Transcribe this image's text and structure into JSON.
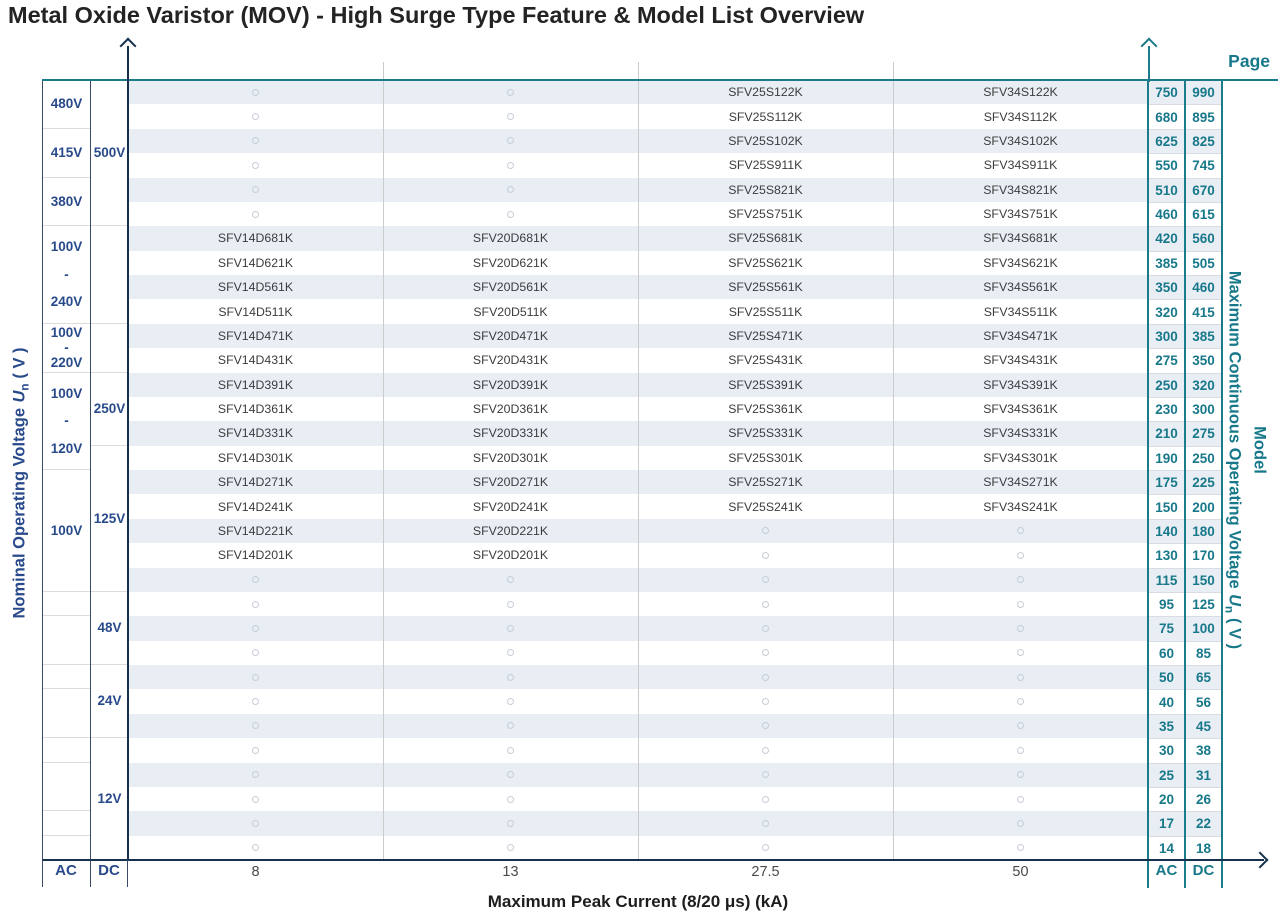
{
  "title": "Metal Oxide Varistor (MOV) - High Surge Type Feature & Model List Overview",
  "page_label": "Page",
  "model_label": "Model",
  "left_axis": {
    "text": "Nominal Operating Voltage",
    "sym": "U",
    "sub": "n",
    "unit": "( V )"
  },
  "right_axis": {
    "text": "Maximum Continuous Operating Voltage",
    "sym": "U",
    "sub": "n",
    "unit": "( V )"
  },
  "x_axis": {
    "label": "Maximum Peak Current (8/20 μs) (kA)"
  },
  "footer": {
    "left_ac": "AC",
    "left_dc": "DC",
    "right_ac": "AC",
    "right_dc": "DC"
  },
  "colors": {
    "teal": "#17788a",
    "navy": "#284a8a",
    "axis": "#15314d",
    "stripe": "#e9eef5"
  },
  "chart_data": {
    "type": "table",
    "title": "Metal Oxide Varistor (MOV) - High Surge Type Feature & Model List Overview",
    "xlabel": "Maximum Peak Current (8/20 μs) (kA)",
    "columns_kA": [
      "8",
      "13",
      "27.5",
      "50"
    ],
    "left_columns": [
      "AC",
      "DC"
    ],
    "right_columns": [
      "AC",
      "DC"
    ],
    "ac_groups": [
      {
        "label": [
          "480V"
        ],
        "rows": 2
      },
      {
        "label": [
          "415V"
        ],
        "rows": 2
      },
      {
        "label": [
          "380V"
        ],
        "rows": 2
      },
      {
        "label": [
          "100V",
          "-",
          "240V"
        ],
        "rows": 4
      },
      {
        "label": [
          "100V",
          "-",
          "220V"
        ],
        "rows": 2
      },
      {
        "label": [
          "100V",
          "-",
          "120V"
        ],
        "rows": 4
      },
      {
        "label": [
          "100V"
        ],
        "rows": 5
      },
      {
        "label": [],
        "rows": 1
      },
      {
        "label": [],
        "rows": 2
      },
      {
        "label": [],
        "rows": 1
      },
      {
        "label": [],
        "rows": 2
      },
      {
        "label": [],
        "rows": 1
      },
      {
        "label": [],
        "rows": 2
      },
      {
        "label": [],
        "rows": 1
      },
      {
        "label": [],
        "rows": 1
      }
    ],
    "dc_groups": [
      {
        "label": [
          "500V"
        ],
        "rows": 6
      },
      {
        "label": [],
        "rows": 4
      },
      {
        "label": [],
        "rows": 2
      },
      {
        "label": [
          "250V"
        ],
        "rows": 3
      },
      {
        "label": [
          "125V"
        ],
        "rows": 6
      },
      {
        "label": [
          "48V"
        ],
        "rows": 3
      },
      {
        "label": [
          "24V"
        ],
        "rows": 3
      },
      {
        "label": [
          "12V"
        ],
        "rows": 5
      }
    ],
    "rows": [
      {
        "models": [
          "",
          "",
          "SFV25S122K",
          "SFV34S122K"
        ],
        "ac": "750",
        "dc": "990"
      },
      {
        "models": [
          "",
          "",
          "SFV25S112K",
          "SFV34S112K"
        ],
        "ac": "680",
        "dc": "895"
      },
      {
        "models": [
          "",
          "",
          "SFV25S102K",
          "SFV34S102K"
        ],
        "ac": "625",
        "dc": "825"
      },
      {
        "models": [
          "",
          "",
          "SFV25S911K",
          "SFV34S911K"
        ],
        "ac": "550",
        "dc": "745"
      },
      {
        "models": [
          "",
          "",
          "SFV25S821K",
          "SFV34S821K"
        ],
        "ac": "510",
        "dc": "670"
      },
      {
        "models": [
          "",
          "",
          "SFV25S751K",
          "SFV34S751K"
        ],
        "ac": "460",
        "dc": "615"
      },
      {
        "models": [
          "SFV14D681K",
          "SFV20D681K",
          "SFV25S681K",
          "SFV34S681K"
        ],
        "ac": "420",
        "dc": "560"
      },
      {
        "models": [
          "SFV14D621K",
          "SFV20D621K",
          "SFV25S621K",
          "SFV34S621K"
        ],
        "ac": "385",
        "dc": "505"
      },
      {
        "models": [
          "SFV14D561K",
          "SFV20D561K",
          "SFV25S561K",
          "SFV34S561K"
        ],
        "ac": "350",
        "dc": "460"
      },
      {
        "models": [
          "SFV14D511K",
          "SFV20D511K",
          "SFV25S511K",
          "SFV34S511K"
        ],
        "ac": "320",
        "dc": "415"
      },
      {
        "models": [
          "SFV14D471K",
          "SFV20D471K",
          "SFV25S471K",
          "SFV34S471K"
        ],
        "ac": "300",
        "dc": "385"
      },
      {
        "models": [
          "SFV14D431K",
          "SFV20D431K",
          "SFV25S431K",
          "SFV34S431K"
        ],
        "ac": "275",
        "dc": "350"
      },
      {
        "models": [
          "SFV14D391K",
          "SFV20D391K",
          "SFV25S391K",
          "SFV34S391K"
        ],
        "ac": "250",
        "dc": "320"
      },
      {
        "models": [
          "SFV14D361K",
          "SFV20D361K",
          "SFV25S361K",
          "SFV34S361K"
        ],
        "ac": "230",
        "dc": "300"
      },
      {
        "models": [
          "SFV14D331K",
          "SFV20D331K",
          "SFV25S331K",
          "SFV34S331K"
        ],
        "ac": "210",
        "dc": "275"
      },
      {
        "models": [
          "SFV14D301K",
          "SFV20D301K",
          "SFV25S301K",
          "SFV34S301K"
        ],
        "ac": "190",
        "dc": "250"
      },
      {
        "models": [
          "SFV14D271K",
          "SFV20D271K",
          "SFV25S271K",
          "SFV34S271K"
        ],
        "ac": "175",
        "dc": "225"
      },
      {
        "models": [
          "SFV14D241K",
          "SFV20D241K",
          "SFV25S241K",
          "SFV34S241K"
        ],
        "ac": "150",
        "dc": "200"
      },
      {
        "models": [
          "SFV14D221K",
          "SFV20D221K",
          "",
          ""
        ],
        "ac": "140",
        "dc": "180"
      },
      {
        "models": [
          "SFV14D201K",
          "SFV20D201K",
          "",
          ""
        ],
        "ac": "130",
        "dc": "170"
      },
      {
        "models": [
          "",
          "",
          "",
          ""
        ],
        "ac": "115",
        "dc": "150"
      },
      {
        "models": [
          "",
          "",
          "",
          ""
        ],
        "ac": "95",
        "dc": "125"
      },
      {
        "models": [
          "",
          "",
          "",
          ""
        ],
        "ac": "75",
        "dc": "100"
      },
      {
        "models": [
          "",
          "",
          "",
          ""
        ],
        "ac": "60",
        "dc": "85"
      },
      {
        "models": [
          "",
          "",
          "",
          ""
        ],
        "ac": "50",
        "dc": "65"
      },
      {
        "models": [
          "",
          "",
          "",
          ""
        ],
        "ac": "40",
        "dc": "56"
      },
      {
        "models": [
          "",
          "",
          "",
          ""
        ],
        "ac": "35",
        "dc": "45"
      },
      {
        "models": [
          "",
          "",
          "",
          ""
        ],
        "ac": "30",
        "dc": "38"
      },
      {
        "models": [
          "",
          "",
          "",
          ""
        ],
        "ac": "25",
        "dc": "31"
      },
      {
        "models": [
          "",
          "",
          "",
          ""
        ],
        "ac": "20",
        "dc": "26"
      },
      {
        "models": [
          "",
          "",
          "",
          ""
        ],
        "ac": "17",
        "dc": "22"
      },
      {
        "models": [
          "",
          "",
          "",
          ""
        ],
        "ac": "14",
        "dc": "18"
      }
    ]
  }
}
